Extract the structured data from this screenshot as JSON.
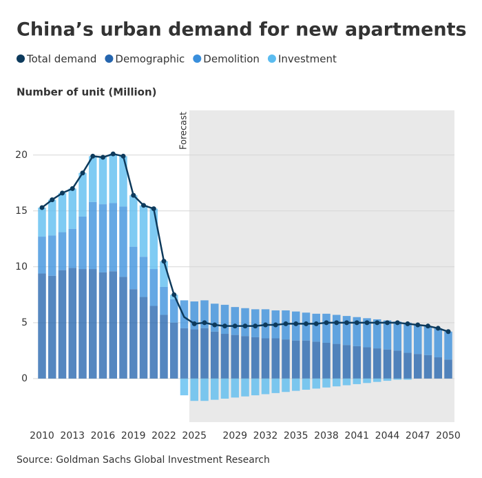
{
  "chart_data": {
    "type": "bar",
    "stacked": true,
    "title": "China’s urban demand for new apartments",
    "y_label": "Number of unit (Million)",
    "annotation": "Forecast",
    "source": "Source: Goldman Sachs Global Investment Research",
    "categories": [
      "2010",
      null,
      null,
      "2013",
      null,
      null,
      "2016",
      null,
      null,
      "2019",
      null,
      null,
      "2022",
      null,
      null,
      "2025",
      null,
      null,
      null,
      "2029",
      null,
      null,
      "2032",
      null,
      null,
      "2035",
      null,
      null,
      "2038",
      null,
      null,
      "2041",
      null,
      null,
      "2044",
      null,
      null,
      "2047",
      null,
      null,
      "2050"
    ],
    "series": [
      {
        "name": "Total demand",
        "color": "#0d3a5c",
        "type": "line",
        "values": [
          15.3,
          16.0,
          16.6,
          17.0,
          18.4,
          19.9,
          19.8,
          20.1,
          19.9,
          16.4,
          15.5,
          15.2,
          10.5,
          7.5,
          5.5,
          4.9,
          5.0,
          4.8,
          4.7,
          4.7,
          4.7,
          4.7,
          4.8,
          4.8,
          4.9,
          4.9,
          4.9,
          4.9,
          5.0,
          5.0,
          5.0,
          5.0,
          5.0,
          5.0,
          5.0,
          5.0,
          4.9,
          4.8,
          4.7,
          4.5,
          4.2
        ]
      },
      {
        "name": "Demographic",
        "color": "#2565ae",
        "values": [
          9.4,
          9.2,
          9.7,
          9.9,
          9.8,
          9.8,
          9.5,
          9.6,
          9.1,
          8.0,
          7.3,
          6.5,
          5.7,
          5.0,
          4.5,
          4.4,
          4.5,
          4.2,
          4.0,
          3.9,
          3.8,
          3.7,
          3.6,
          3.6,
          3.5,
          3.4,
          3.4,
          3.3,
          3.2,
          3.1,
          3.0,
          2.9,
          2.8,
          2.7,
          2.6,
          2.5,
          2.3,
          2.2,
          2.1,
          1.9,
          1.7
        ]
      },
      {
        "name": "Demolition",
        "color": "#3a8fdc",
        "values": [
          3.3,
          3.6,
          3.4,
          3.5,
          4.7,
          6.0,
          6.1,
          6.1,
          6.3,
          3.8,
          3.6,
          3.3,
          2.5,
          2.1,
          2.5,
          2.5,
          2.5,
          2.5,
          2.6,
          2.5,
          2.5,
          2.5,
          2.6,
          2.5,
          2.6,
          2.6,
          2.5,
          2.5,
          2.6,
          2.6,
          2.6,
          2.6,
          2.6,
          2.6,
          2.6,
          2.6,
          2.7,
          2.6,
          2.6,
          2.6,
          2.5
        ]
      },
      {
        "name": "Investment",
        "color": "#5bbcf0",
        "values": [
          2.6,
          3.2,
          3.5,
          3.6,
          3.9,
          4.1,
          4.2,
          4.4,
          4.5,
          4.6,
          4.6,
          5.4,
          2.3,
          0.4,
          -1.5,
          -2.0,
          -2.0,
          -1.9,
          -1.8,
          -1.7,
          -1.6,
          -1.5,
          -1.4,
          -1.3,
          -1.2,
          -1.1,
          -1.0,
          -0.9,
          -0.8,
          -0.7,
          -0.6,
          -0.5,
          -0.4,
          -0.3,
          -0.2,
          -0.1,
          -0.1,
          0,
          0,
          0,
          0
        ]
      }
    ],
    "ylim": [
      -3.9,
      24
    ],
    "yticks": [
      0,
      5,
      10,
      15,
      20
    ],
    "grid": true
  }
}
